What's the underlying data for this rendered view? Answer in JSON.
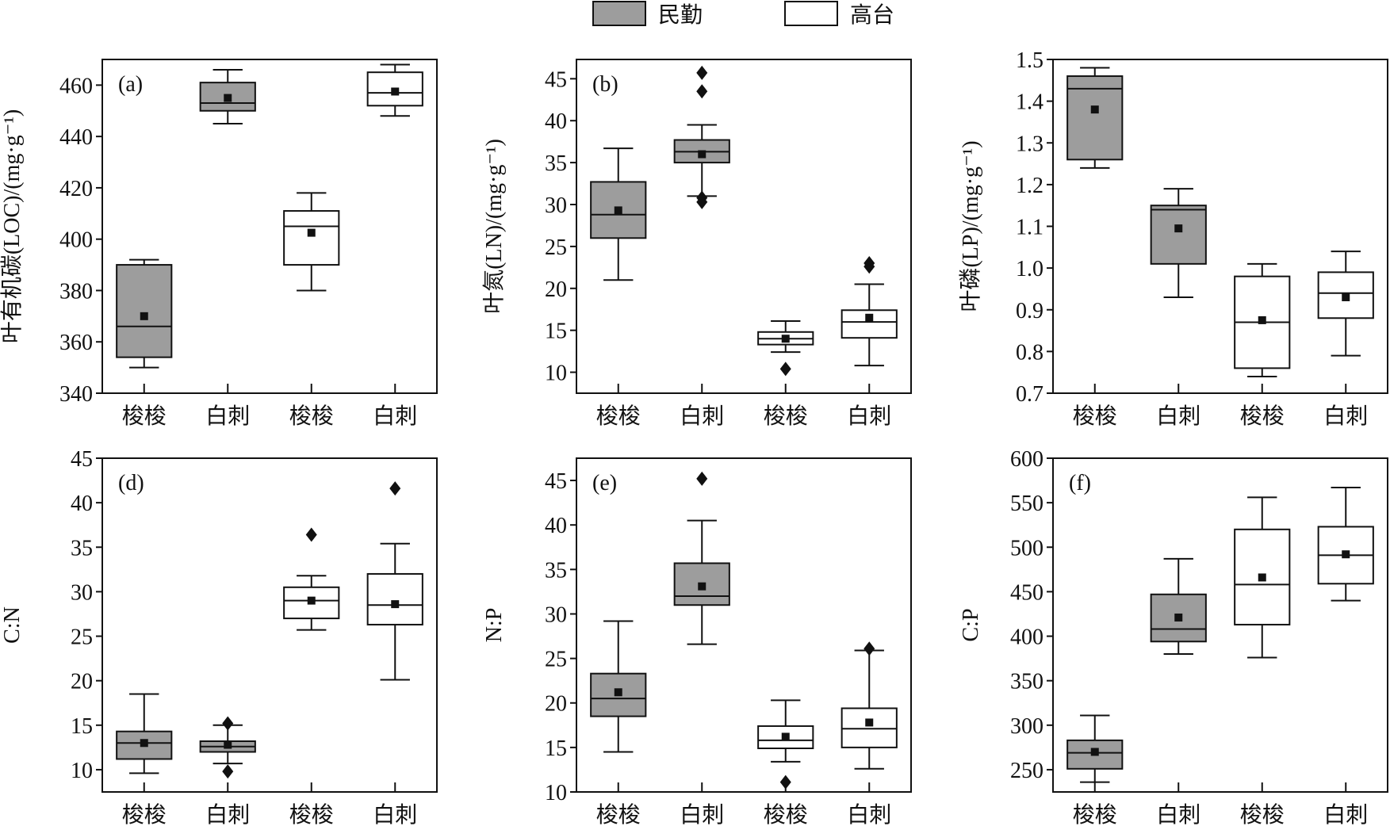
{
  "legend": [
    {
      "label": "民勤",
      "fill": "#9d9d9d"
    },
    {
      "label": "高台",
      "fill": "#ffffff"
    }
  ],
  "chart_data": [
    {
      "type": "box",
      "panel_label": "(a)",
      "ylabel": "叶有机碳(LOC)/(mg·g⁻¹)",
      "ylim": [
        340,
        470
      ],
      "yticks": [
        340,
        360,
        380,
        400,
        420,
        440,
        460
      ],
      "categories": [
        "梭梭",
        "白刺",
        "梭梭",
        "白刺"
      ],
      "site": [
        "民勤",
        "民勤",
        "高台",
        "高台"
      ],
      "boxes": [
        {
          "min": 350,
          "q1": 354,
          "median": 366,
          "q3": 390,
          "max": 392,
          "mean": 370,
          "outliers": []
        },
        {
          "min": 445,
          "q1": 450,
          "median": 453,
          "q3": 461,
          "max": 466,
          "mean": 455,
          "outliers": []
        },
        {
          "min": 380,
          "q1": 390,
          "median": 405,
          "q3": 411,
          "max": 418,
          "mean": 402.5,
          "outliers": []
        },
        {
          "min": 448,
          "q1": 452,
          "median": 457,
          "q3": 465,
          "max": 468,
          "mean": 457.5,
          "outliers": []
        }
      ]
    },
    {
      "type": "box",
      "panel_label": "(b)",
      "ylabel": "叶氮(LN)/(mg·g⁻¹)",
      "ylim": [
        7.5,
        47.3
      ],
      "yticks": [
        10,
        15,
        20,
        25,
        30,
        35,
        40,
        45
      ],
      "categories": [
        "梭梭",
        "白刺",
        "梭梭",
        "白刺"
      ],
      "site": [
        "民勤",
        "民勤",
        "高台",
        "高台"
      ],
      "boxes": [
        {
          "min": 21,
          "q1": 26,
          "median": 28.8,
          "q3": 32.7,
          "max": 36.7,
          "mean": 29.3,
          "outliers": []
        },
        {
          "min": 31,
          "q1": 35,
          "median": 36.3,
          "q3": 37.7,
          "max": 39.5,
          "mean": 36,
          "outliers": [
            45.7,
            43.5,
            30.8,
            30.3
          ]
        },
        {
          "min": 12.4,
          "q1": 13.3,
          "median": 14,
          "q3": 14.8,
          "max": 16.1,
          "mean": 14,
          "outliers": [
            10.4
          ]
        },
        {
          "min": 10.8,
          "q1": 14.1,
          "median": 16,
          "q3": 17.4,
          "max": 20.5,
          "mean": 16.5,
          "outliers": [
            23,
            22.6
          ]
        }
      ]
    },
    {
      "type": "box",
      "panel_label": "(c)",
      "ylabel": "叶磷(LP)/(mg·g⁻¹)",
      "ylim": [
        0.7,
        1.5
      ],
      "yticks": [
        "0.7",
        "0.8",
        "0.9",
        "1.0",
        "1.1",
        "1.2",
        "1.3",
        "1.4",
        "1.5"
      ],
      "categories": [
        "梭梭",
        "白刺",
        "梭梭",
        "白刺"
      ],
      "site": [
        "民勤",
        "民勤",
        "高台",
        "高台"
      ],
      "boxes": [
        {
          "min": 1.24,
          "q1": 1.26,
          "median": 1.43,
          "q3": 1.46,
          "max": 1.48,
          "mean": 1.38,
          "outliers": []
        },
        {
          "min": 0.93,
          "q1": 1.01,
          "median": 1.14,
          "q3": 1.15,
          "max": 1.19,
          "mean": 1.095,
          "outliers": []
        },
        {
          "min": 0.74,
          "q1": 0.76,
          "median": 0.87,
          "q3": 0.98,
          "max": 1.01,
          "mean": 0.875,
          "outliers": []
        },
        {
          "min": 0.79,
          "q1": 0.88,
          "median": 0.94,
          "q3": 0.99,
          "max": 1.04,
          "mean": 0.93,
          "outliers": []
        }
      ]
    },
    {
      "type": "box",
      "panel_label": "(d)",
      "ylabel": "C:N",
      "ylim": [
        7.5,
        45
      ],
      "yticks": [
        10,
        15,
        20,
        25,
        30,
        35,
        40,
        45
      ],
      "categories": [
        "梭梭",
        "白刺",
        "梭梭",
        "白刺"
      ],
      "site": [
        "民勤",
        "民勤",
        "高台",
        "高台"
      ],
      "boxes": [
        {
          "min": 9.6,
          "q1": 11.2,
          "median": 13,
          "q3": 14.3,
          "max": 18.5,
          "mean": 13,
          "outliers": []
        },
        {
          "min": 10.7,
          "q1": 12,
          "median": 12.6,
          "q3": 13.2,
          "max": 15,
          "mean": 12.8,
          "outliers": [
            15.2,
            9.8
          ]
        },
        {
          "min": 25.7,
          "q1": 27,
          "median": 29,
          "q3": 30.5,
          "max": 31.8,
          "mean": 29,
          "outliers": [
            36.4
          ]
        },
        {
          "min": 20.1,
          "q1": 26.3,
          "median": 28.5,
          "q3": 32,
          "max": 35.4,
          "mean": 28.6,
          "outliers": [
            41.6
          ]
        }
      ]
    },
    {
      "type": "box",
      "panel_label": "(e)",
      "ylabel": "N:P",
      "ylim": [
        10,
        47.5
      ],
      "yticks": [
        10,
        15,
        20,
        25,
        30,
        35,
        40,
        45
      ],
      "categories": [
        "梭梭",
        "白刺",
        "梭梭",
        "白刺"
      ],
      "site": [
        "民勤",
        "民勤",
        "高台",
        "高台"
      ],
      "boxes": [
        {
          "min": 14.5,
          "q1": 18.5,
          "median": 20.5,
          "q3": 23.3,
          "max": 29.2,
          "mean": 21.2,
          "outliers": []
        },
        {
          "min": 26.6,
          "q1": 31,
          "median": 32,
          "q3": 35.7,
          "max": 40.5,
          "mean": 33.1,
          "outliers": [
            45.2
          ]
        },
        {
          "min": 13.4,
          "q1": 14.9,
          "median": 15.8,
          "q3": 17.4,
          "max": 20.3,
          "mean": 16.2,
          "outliers": [
            11.1
          ]
        },
        {
          "min": 12.6,
          "q1": 15,
          "median": 17.1,
          "q3": 19.4,
          "max": 25.9,
          "mean": 17.8,
          "outliers": [
            26.1
          ]
        }
      ]
    },
    {
      "type": "box",
      "panel_label": "(f)",
      "ylabel": "C:P",
      "ylim": [
        225,
        600
      ],
      "yticks": [
        250,
        300,
        350,
        400,
        450,
        500,
        550,
        600
      ],
      "categories": [
        "梭梭",
        "白刺",
        "梭梭",
        "白刺"
      ],
      "site": [
        "民勤",
        "民勤",
        "高台",
        "高台"
      ],
      "boxes": [
        {
          "min": 236,
          "q1": 251,
          "median": 269,
          "q3": 283,
          "max": 311,
          "mean": 270,
          "outliers": []
        },
        {
          "min": 380,
          "q1": 394,
          "median": 408,
          "q3": 447,
          "max": 487,
          "mean": 421,
          "outliers": []
        },
        {
          "min": 376,
          "q1": 413,
          "median": 458,
          "q3": 520,
          "max": 556,
          "mean": 466,
          "outliers": []
        },
        {
          "min": 440,
          "q1": 459,
          "median": 491,
          "q3": 523,
          "max": 567,
          "mean": 492,
          "outliers": []
        }
      ]
    }
  ]
}
